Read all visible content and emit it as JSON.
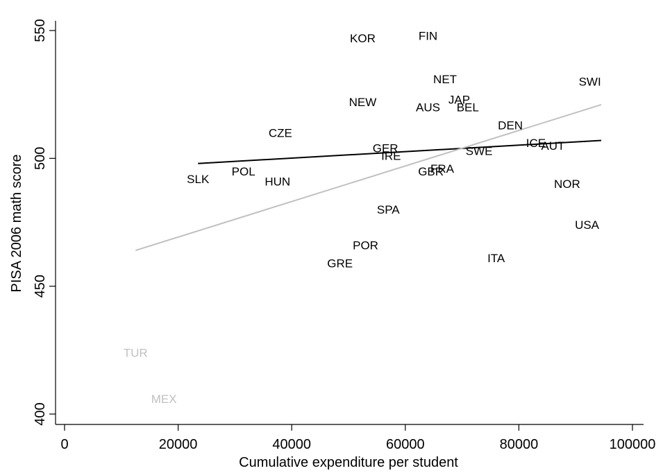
{
  "chart_data": {
    "type": "scatter",
    "title": "",
    "xlabel": "Cumulative expenditure per student",
    "ylabel": "PISA 2006 math score",
    "xlim": [
      0,
      100000
    ],
    "ylim": [
      400,
      550
    ],
    "x_ticks": [
      0,
      20000,
      40000,
      60000,
      80000,
      100000
    ],
    "y_ticks": [
      400,
      450,
      500,
      550
    ],
    "grid": false,
    "colors": {
      "main": "#000000",
      "outlier": "#c0c0c0"
    },
    "points": [
      {
        "label": "KOR",
        "x": 52500,
        "y": 547,
        "group": "main"
      },
      {
        "label": "FIN",
        "x": 64000,
        "y": 548,
        "group": "main"
      },
      {
        "label": "NET",
        "x": 67000,
        "y": 531,
        "group": "main"
      },
      {
        "label": "SWI",
        "x": 92500,
        "y": 530,
        "group": "main"
      },
      {
        "label": "NEW",
        "x": 52500,
        "y": 522,
        "group": "main"
      },
      {
        "label": "JAP",
        "x": 69500,
        "y": 523,
        "group": "main"
      },
      {
        "label": "AUS",
        "x": 64000,
        "y": 520,
        "group": "main"
      },
      {
        "label": "BEL",
        "x": 71000,
        "y": 520,
        "group": "main"
      },
      {
        "label": "DEN",
        "x": 78500,
        "y": 513,
        "group": "main"
      },
      {
        "label": "CZE",
        "x": 38000,
        "y": 510,
        "group": "main"
      },
      {
        "label": "ICE",
        "x": 83000,
        "y": 506,
        "group": "main"
      },
      {
        "label": "AUT",
        "x": 86000,
        "y": 505,
        "group": "main"
      },
      {
        "label": "GER",
        "x": 56500,
        "y": 504,
        "group": "main"
      },
      {
        "label": "SWE",
        "x": 73000,
        "y": 503,
        "group": "main"
      },
      {
        "label": "IRE",
        "x": 57500,
        "y": 501,
        "group": "main"
      },
      {
        "label": "FRA",
        "x": 66500,
        "y": 496,
        "group": "main"
      },
      {
        "label": "GBR",
        "x": 64500,
        "y": 495,
        "group": "main"
      },
      {
        "label": "POL",
        "x": 31500,
        "y": 495,
        "group": "main"
      },
      {
        "label": "SLK",
        "x": 23500,
        "y": 492,
        "group": "main"
      },
      {
        "label": "HUN",
        "x": 37500,
        "y": 491,
        "group": "main"
      },
      {
        "label": "NOR",
        "x": 88500,
        "y": 490,
        "group": "main"
      },
      {
        "label": "SPA",
        "x": 57000,
        "y": 480,
        "group": "main"
      },
      {
        "label": "USA",
        "x": 92000,
        "y": 474,
        "group": "main"
      },
      {
        "label": "POR",
        "x": 53000,
        "y": 466,
        "group": "main"
      },
      {
        "label": "ITA",
        "x": 76000,
        "y": 461,
        "group": "main"
      },
      {
        "label": "GRE",
        "x": 48500,
        "y": 459,
        "group": "main"
      },
      {
        "label": "TUR",
        "x": 12500,
        "y": 424,
        "group": "outlier"
      },
      {
        "label": "MEX",
        "x": 17500,
        "y": 406,
        "group": "outlier"
      }
    ],
    "fit_lines": [
      {
        "x": [
          23500,
          94500
        ],
        "y": [
          498,
          507
        ],
        "color": "#000000"
      },
      {
        "x": [
          12500,
          94500
        ],
        "y": [
          464,
          521
        ],
        "color": "#c0c0c0"
      }
    ]
  }
}
